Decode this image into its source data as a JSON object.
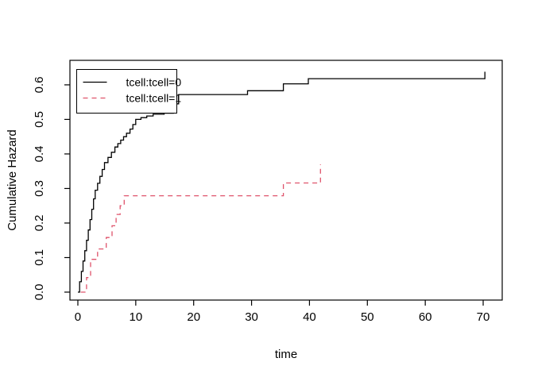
{
  "figure": {
    "background": "#ffffff"
  },
  "chart_data": {
    "type": "line",
    "subtype": "step-post",
    "title": "",
    "xlabel": "time",
    "ylabel": "Cumulative Hazard",
    "xlim": [
      -1.37,
      73.29
    ],
    "ylim": [
      -0.023,
      0.671
    ],
    "x_ticks": [
      0,
      10,
      20,
      30,
      40,
      50,
      60,
      70
    ],
    "y_ticks": [
      "0.0",
      "0.1",
      "0.2",
      "0.3",
      "0.4",
      "0.5",
      "0.6"
    ],
    "grid": false,
    "box": true,
    "series": [
      {
        "name": "tcell:tcell=0",
        "color": "#000000",
        "line_style": "solid",
        "x": [
          0,
          0.3,
          0.6,
          0.9,
          1.2,
          1.5,
          1.8,
          2.1,
          2.4,
          2.7,
          3.0,
          3.4,
          3.8,
          4.2,
          4.6,
          5.2,
          5.8,
          6.4,
          6.9,
          7.4,
          7.9,
          8.4,
          9.0,
          9.5,
          10.0,
          10.9,
          11.9,
          13.0,
          14.9,
          16.5,
          16.8,
          17.4,
          29.3,
          35.5,
          39.8,
          70.3
        ],
        "y": [
          0,
          0.03,
          0.06,
          0.09,
          0.12,
          0.15,
          0.18,
          0.21,
          0.24,
          0.27,
          0.295,
          0.315,
          0.335,
          0.355,
          0.375,
          0.39,
          0.405,
          0.42,
          0.43,
          0.44,
          0.45,
          0.46,
          0.472,
          0.485,
          0.5,
          0.505,
          0.51,
          0.515,
          0.518,
          0.52,
          0.545,
          0.572,
          0.583,
          0.603,
          0.618,
          0.638
        ]
      },
      {
        "name": "tcell:tcell=1",
        "color": "#DF536B",
        "line_style": "dashed",
        "x": [
          0.5,
          1.5,
          2.2,
          3.4,
          4.9,
          5.9,
          6.6,
          7.3,
          8.0,
          35.5,
          41.9
        ],
        "y": [
          0.0,
          0.042,
          0.095,
          0.125,
          0.158,
          0.192,
          0.225,
          0.25,
          0.279,
          0.316,
          0.37
        ]
      }
    ],
    "legend": {
      "position": "topleft",
      "entries": [
        {
          "label": "tcell:tcell=0",
          "color": "#000000",
          "line_style": "solid"
        },
        {
          "label": "tcell:tcell=1",
          "color": "#DF536B",
          "line_style": "dashed"
        }
      ]
    }
  }
}
